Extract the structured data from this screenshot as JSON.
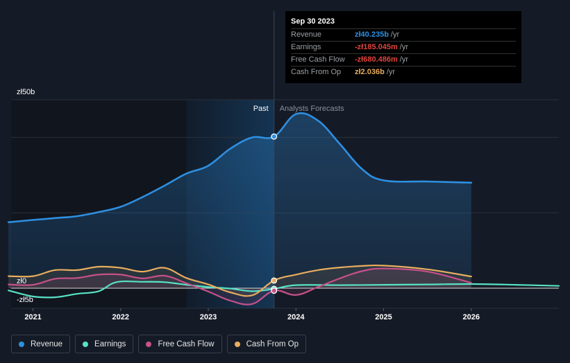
{
  "chart_data": {
    "type": "line",
    "currency": "zł",
    "y_axis": {
      "max_label": "zł50b",
      "zero_label": "zł0",
      "min_label": "-zł5b",
      "ylim": [
        -5,
        50
      ]
    },
    "x_ticks": [
      "2021",
      "2022",
      "2023",
      "2024",
      "2025",
      "2026"
    ],
    "x_range": [
      2020.75,
      2027.0
    ],
    "past_label": "Past",
    "forecast_label": "Analysts Forecasts",
    "past_start": 2022.75,
    "divider": 2023.75,
    "series": [
      {
        "key": "revenue",
        "name": "Revenue",
        "color": "#2f8fe0",
        "points": [
          [
            2020.72,
            17.5
          ],
          [
            2021.0,
            18.1
          ],
          [
            2021.25,
            18.6
          ],
          [
            2021.5,
            19.1
          ],
          [
            2021.75,
            20.2
          ],
          [
            2022.0,
            21.6
          ],
          [
            2022.25,
            24.2
          ],
          [
            2022.5,
            27.2
          ],
          [
            2022.75,
            30.4
          ],
          [
            2023.0,
            32.5
          ],
          [
            2023.25,
            37.0
          ],
          [
            2023.5,
            40.0
          ],
          [
            2023.75,
            40.235
          ],
          [
            2024.0,
            46.2
          ],
          [
            2024.25,
            44.5
          ],
          [
            2024.5,
            38.3
          ],
          [
            2024.75,
            31.7
          ],
          [
            2025.0,
            28.6
          ],
          [
            2025.5,
            28.3
          ],
          [
            2026.0,
            28.0
          ]
        ]
      },
      {
        "key": "earnings",
        "name": "Earnings",
        "color": "#58e3c6",
        "points": [
          [
            2020.72,
            -0.6
          ],
          [
            2021.0,
            -2.2
          ],
          [
            2021.25,
            -2.4
          ],
          [
            2021.5,
            -1.5
          ],
          [
            2021.75,
            -0.8
          ],
          [
            2021.95,
            1.6
          ],
          [
            2022.25,
            1.7
          ],
          [
            2022.5,
            1.6
          ],
          [
            2022.75,
            0.9
          ],
          [
            2023.0,
            0.3
          ],
          [
            2023.25,
            -0.1
          ],
          [
            2023.5,
            -0.8
          ],
          [
            2023.75,
            -0.185
          ],
          [
            2024.0,
            0.8
          ],
          [
            2024.5,
            0.8
          ],
          [
            2025.0,
            0.9
          ],
          [
            2025.5,
            1.0
          ],
          [
            2026.0,
            1.1
          ],
          [
            2026.5,
            0.9
          ],
          [
            2027.0,
            0.6
          ]
        ]
      },
      {
        "key": "fcf",
        "name": "Free Cash Flow",
        "color": "#c7518a",
        "points": [
          [
            2020.72,
            1.0
          ],
          [
            2021.0,
            0.9
          ],
          [
            2021.25,
            2.5
          ],
          [
            2021.5,
            2.7
          ],
          [
            2021.75,
            3.6
          ],
          [
            2022.0,
            3.6
          ],
          [
            2022.25,
            2.6
          ],
          [
            2022.5,
            3.3
          ],
          [
            2022.75,
            1.3
          ],
          [
            2023.0,
            -0.9
          ],
          [
            2023.25,
            -3.3
          ],
          [
            2023.5,
            -4.2
          ],
          [
            2023.75,
            -0.68
          ],
          [
            2024.0,
            -1.8
          ],
          [
            2024.25,
            0.3
          ],
          [
            2024.5,
            2.6
          ],
          [
            2024.75,
            4.5
          ],
          [
            2025.0,
            5.2
          ],
          [
            2025.5,
            4.4
          ],
          [
            2026.0,
            1.4
          ]
        ]
      },
      {
        "key": "cfo",
        "name": "Cash From Op",
        "color": "#e8ad5e",
        "points": [
          [
            2020.72,
            3.2
          ],
          [
            2021.0,
            3.2
          ],
          [
            2021.25,
            4.8
          ],
          [
            2021.5,
            4.8
          ],
          [
            2021.75,
            5.7
          ],
          [
            2022.0,
            5.4
          ],
          [
            2022.25,
            4.4
          ],
          [
            2022.5,
            5.4
          ],
          [
            2022.75,
            2.7
          ],
          [
            2023.0,
            1.0
          ],
          [
            2023.25,
            -1.1
          ],
          [
            2023.5,
            -1.9
          ],
          [
            2023.75,
            2.036
          ],
          [
            2024.0,
            3.6
          ],
          [
            2024.25,
            4.8
          ],
          [
            2024.5,
            5.5
          ],
          [
            2024.75,
            5.9
          ],
          [
            2025.0,
            6.0
          ],
          [
            2025.5,
            5.0
          ],
          [
            2026.0,
            3.1
          ]
        ]
      }
    ]
  },
  "tooltip": {
    "date": "Sep 30 2023",
    "rows": [
      {
        "label": "Revenue",
        "value": "zł40.235b",
        "unit": "/yr",
        "color": "#2f8fe0"
      },
      {
        "label": "Earnings",
        "value": "-zł185.045m",
        "unit": "/yr",
        "color": "#e0443d"
      },
      {
        "label": "Free Cash Flow",
        "value": "-zł680.486m",
        "unit": "/yr",
        "color": "#e0443d"
      },
      {
        "label": "Cash From Op",
        "value": "zł2.036b",
        "unit": "/yr",
        "color": "#e8ad5e"
      }
    ]
  },
  "legend": [
    {
      "label": "Revenue",
      "color": "#2f8fe0"
    },
    {
      "label": "Earnings",
      "color": "#58e3c6"
    },
    {
      "label": "Free Cash Flow",
      "color": "#c7518a"
    },
    {
      "label": "Cash From Op",
      "color": "#e8ad5e"
    }
  ]
}
